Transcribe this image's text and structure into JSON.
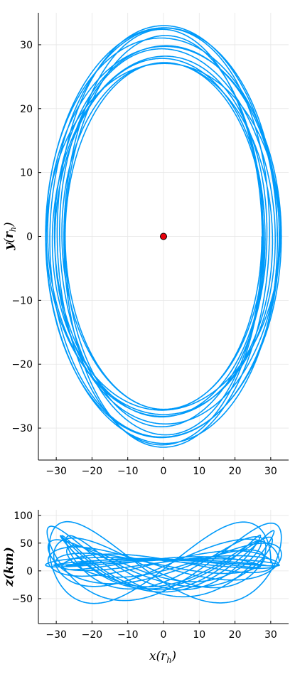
{
  "chart_data": [
    {
      "type": "line",
      "panel": "top",
      "title": "",
      "xlabel": "",
      "ylabel": "y(r_h)",
      "ylabel_main": "y",
      "ylabel_sub": "h",
      "xlim": [
        -35,
        35
      ],
      "ylim": [
        -35,
        35
      ],
      "xticks": [
        -30,
        -20,
        -10,
        0,
        10,
        20,
        30
      ],
      "yticks": [
        -30,
        -20,
        -10,
        0,
        10,
        20,
        30
      ],
      "xtick_labels": [
        "−30",
        "−20",
        "−10",
        "0",
        "10",
        "20",
        "30"
      ],
      "ytick_labels": [
        "−30",
        "−20",
        "−10",
        "0",
        "10",
        "20",
        "30"
      ],
      "grid": true,
      "legend": "none",
      "series": [
        {
          "color": "#009AFA",
          "kind": "precessing elliptical orbit (many overlapping loops)",
          "x_semi_axis_range": [
            27.5,
            33
          ],
          "y_semi_axis_range": [
            27,
            33
          ],
          "center": [
            0,
            0
          ],
          "loops": 14
        }
      ],
      "marker": {
        "x": 0,
        "y": 0,
        "color": "#E8000B",
        "shape": "circle"
      }
    },
    {
      "type": "line",
      "panel": "bottom",
      "title": "",
      "xlabel": "x(r_h)",
      "xlabel_main": "x",
      "xlabel_sub": "h",
      "ylabel": "z(km)",
      "xlim": [
        -35,
        35
      ],
      "ylim": [
        -95,
        110
      ],
      "xticks": [
        -30,
        -20,
        -10,
        0,
        10,
        20,
        30
      ],
      "yticks": [
        -50,
        0,
        50,
        100
      ],
      "xtick_labels": [
        "−30",
        "−20",
        "−10",
        "0",
        "10",
        "20",
        "30"
      ],
      "ytick_labels": [
        "−50",
        "0",
        "50",
        "100"
      ],
      "grid": true,
      "legend": "none",
      "series": [
        {
          "color": "#009AFA",
          "kind": "vertical oscillation of orbit projected on x–z plane",
          "z_amplitude_range": [
            55,
            100
          ],
          "x_range": [
            -33,
            33
          ],
          "loops": 14
        }
      ]
    }
  ]
}
